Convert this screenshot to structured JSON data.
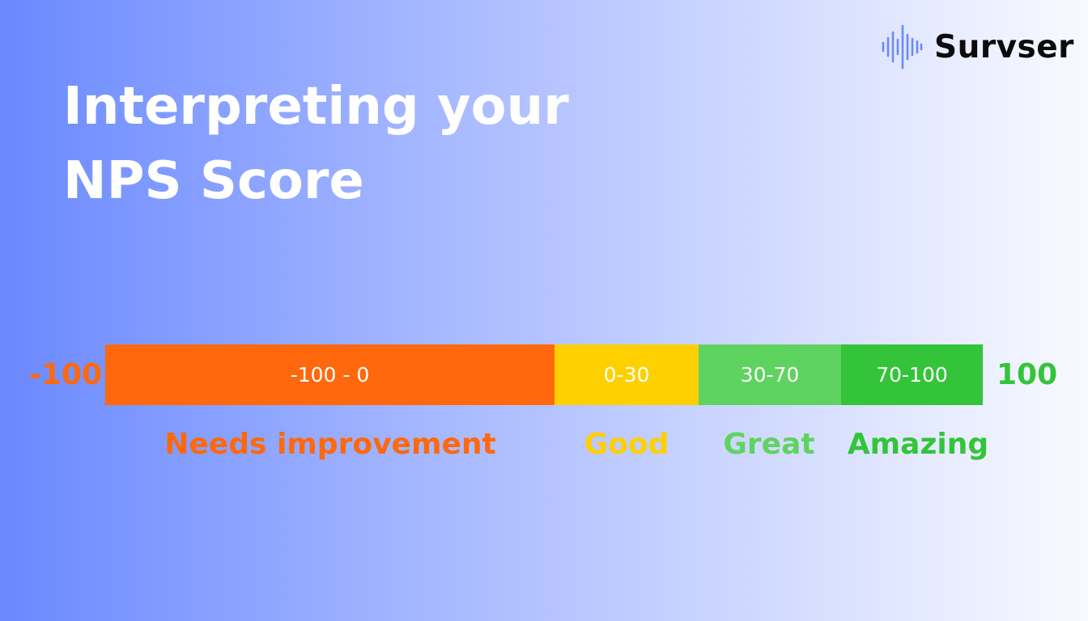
{
  "logo": {
    "icon": "sound-wave-icon",
    "name": "Survser",
    "icon_color": "#6a89ff"
  },
  "title": {
    "line1": "Interpreting your",
    "line2": "NPS Score"
  },
  "scale": {
    "min_label": "-100",
    "max_label": "100",
    "min": -100,
    "max": 100,
    "segments": [
      {
        "range_label": "-100 - 0",
        "category": "Needs improvement",
        "color": "#ff680c"
      },
      {
        "range_label": "0-30",
        "category": "Good",
        "color": "#ffd000"
      },
      {
        "range_label": "30-70",
        "category": "Great",
        "color": "#5fd35f"
      },
      {
        "range_label": "70-100",
        "category": "Amazing",
        "color": "#33c43a"
      }
    ]
  }
}
